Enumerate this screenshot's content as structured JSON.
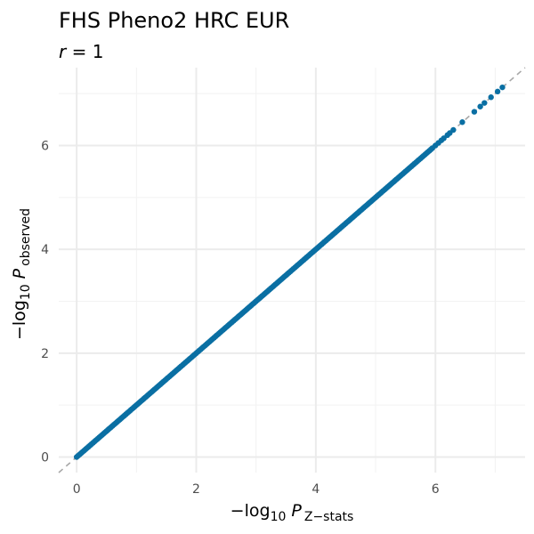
{
  "chart_data": {
    "type": "scatter",
    "title": "FHS Pheno2 HRC EUR",
    "subtitle": {
      "var": "r",
      "op": " = ",
      "value": "1"
    },
    "xlabel": {
      "prefix": "−log",
      "log_base": "10",
      "var": "P",
      "subscript": "Z−stats"
    },
    "ylabel": {
      "prefix": "−log",
      "log_base": "10",
      "var": "P",
      "subscript": "observed"
    },
    "xlim": [
      -0.3,
      7.5
    ],
    "ylim": [
      -0.3,
      7.5
    ],
    "x_ticks": [
      "0",
      "2",
      "4",
      "6"
    ],
    "y_ticks": [
      "0",
      "2",
      "4",
      "6"
    ],
    "x_tick_values": [
      0,
      2,
      4,
      6
    ],
    "y_tick_values": [
      0,
      2,
      4,
      6
    ],
    "grid": true,
    "reference_line": {
      "slope": 1,
      "intercept": 0,
      "style": "dashed",
      "color": "#a8a8a8"
    },
    "point_color": "#0a6fa3",
    "dense_segment": {
      "from": 0,
      "to": 5.95,
      "step": 0.025
    },
    "points": [
      [
        6.0,
        6.0
      ],
      [
        6.05,
        6.05
      ],
      [
        6.1,
        6.1
      ],
      [
        6.14,
        6.14
      ],
      [
        6.2,
        6.2
      ],
      [
        6.24,
        6.24
      ],
      [
        6.3,
        6.3
      ],
      [
        6.45,
        6.45
      ],
      [
        6.65,
        6.65
      ],
      [
        6.75,
        6.75
      ],
      [
        6.82,
        6.82
      ],
      [
        6.93,
        6.93
      ],
      [
        7.04,
        7.04
      ],
      [
        7.12,
        7.12
      ]
    ]
  }
}
